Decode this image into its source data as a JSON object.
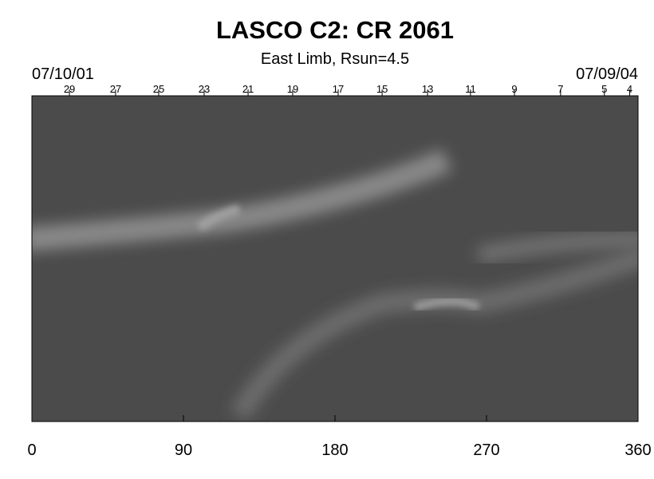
{
  "chart_data": {
    "type": "image",
    "title": "LASCO C2: CR 2061",
    "subtitle": "East Limb, Rsun=4.5",
    "start_date": "07/10/01",
    "end_date": "07/09/04",
    "xlim": [
      0,
      360
    ],
    "xticks": [
      0,
      90,
      180,
      270,
      360
    ],
    "top_ticks": [
      {
        "value": 22.3,
        "label": "29"
      },
      {
        "value": 49.7,
        "label": "27"
      },
      {
        "value": 75.3,
        "label": "25"
      },
      {
        "value": 102.3,
        "label": "23"
      },
      {
        "value": 128.4,
        "label": "21"
      },
      {
        "value": 154.9,
        "label": "19"
      },
      {
        "value": 181.9,
        "label": "17"
      },
      {
        "value": 208,
        "label": "15"
      },
      {
        "value": 235,
        "label": "13"
      },
      {
        "value": 260.5,
        "label": "11"
      },
      {
        "value": 286.6,
        "label": "9"
      },
      {
        "value": 314,
        "label": "7"
      },
      {
        "value": 340,
        "label": "5"
      },
      {
        "value": 355,
        "label": "4"
      }
    ]
  }
}
